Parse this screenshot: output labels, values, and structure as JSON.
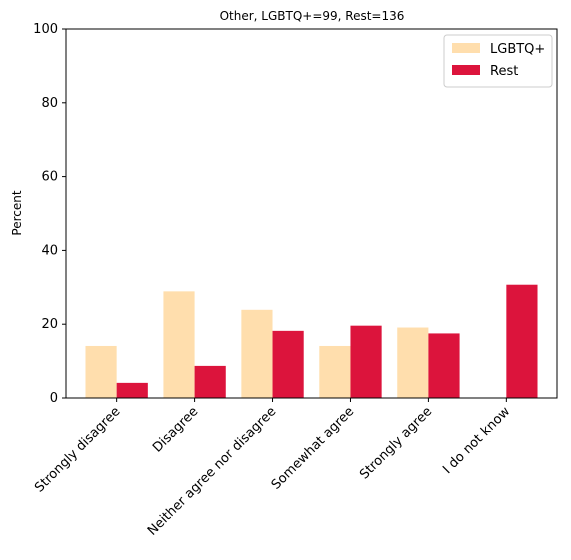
{
  "chart_data": {
    "type": "bar",
    "title": "Other, LGBTQ+=99, Rest=136",
    "xlabel": "",
    "ylabel": "Percent",
    "ylim": [
      0,
      100
    ],
    "yticks": [
      0,
      20,
      40,
      60,
      80,
      100
    ],
    "categories": [
      "Strongly disagree",
      "Disagree",
      "Neither agree nor disagree",
      "Somewhat agree",
      "Strongly agree",
      "I do not know"
    ],
    "series": [
      {
        "name": "LGBTQ+",
        "color": "#ffdead",
        "values": [
          14.1,
          28.9,
          23.9,
          14.1,
          19.1,
          0
        ]
      },
      {
        "name": "Rest",
        "color": "#dc143c",
        "values": [
          4.1,
          8.7,
          18.2,
          19.6,
          17.5,
          30.7
        ]
      }
    ],
    "legend_position": "top-right",
    "grid": false
  }
}
